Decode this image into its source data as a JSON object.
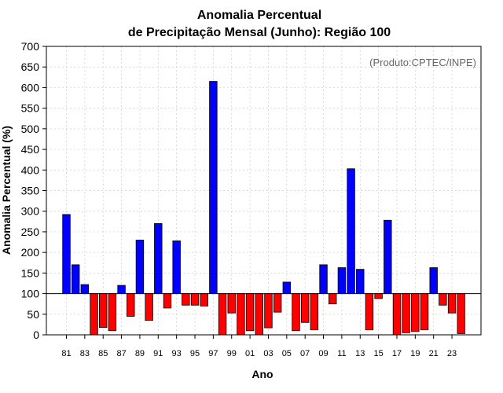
{
  "chart_data": {
    "type": "bar",
    "title_line1": "Anomalia Percentual",
    "title_line2": "de Precipitação Mensal (Junho): Região 100",
    "xlabel": "Ano",
    "ylabel": "Anomalia Percentual (%)",
    "credit": "(Produto:CPTEC/INPE)",
    "baseline": 100,
    "ylim": [
      0,
      700
    ],
    "yticks": [
      0,
      50,
      100,
      150,
      200,
      250,
      300,
      350,
      400,
      450,
      500,
      550,
      600,
      650,
      700
    ],
    "grid": true,
    "colors": {
      "above": "#0000ff",
      "below": "#ff0000"
    },
    "years": [
      "81",
      "82",
      "83",
      "84",
      "85",
      "86",
      "87",
      "88",
      "89",
      "90",
      "91",
      "92",
      "93",
      "94",
      "95",
      "96",
      "97",
      "98",
      "99",
      "00",
      "01",
      "02",
      "03",
      "04",
      "05",
      "06",
      "07",
      "08",
      "09",
      "10",
      "11",
      "12",
      "13",
      "14",
      "15",
      "16",
      "17",
      "18",
      "19",
      "20",
      "21",
      "22",
      "23",
      "24"
    ],
    "xtick_labels": [
      "81",
      "83",
      "85",
      "87",
      "89",
      "91",
      "93",
      "95",
      "97",
      "99",
      "01",
      "03",
      "05",
      "07",
      "09",
      "11",
      "13",
      "15",
      "17",
      "19",
      "21",
      "23"
    ],
    "values": [
      292,
      170,
      122,
      0,
      18,
      10,
      120,
      45,
      230,
      35,
      270,
      65,
      228,
      72,
      72,
      70,
      615,
      0,
      53,
      0,
      10,
      0,
      17,
      55,
      128,
      10,
      30,
      12,
      170,
      75,
      163,
      403,
      159,
      12,
      88,
      278,
      0,
      5,
      8,
      12,
      163,
      72,
      53,
      3
    ]
  }
}
